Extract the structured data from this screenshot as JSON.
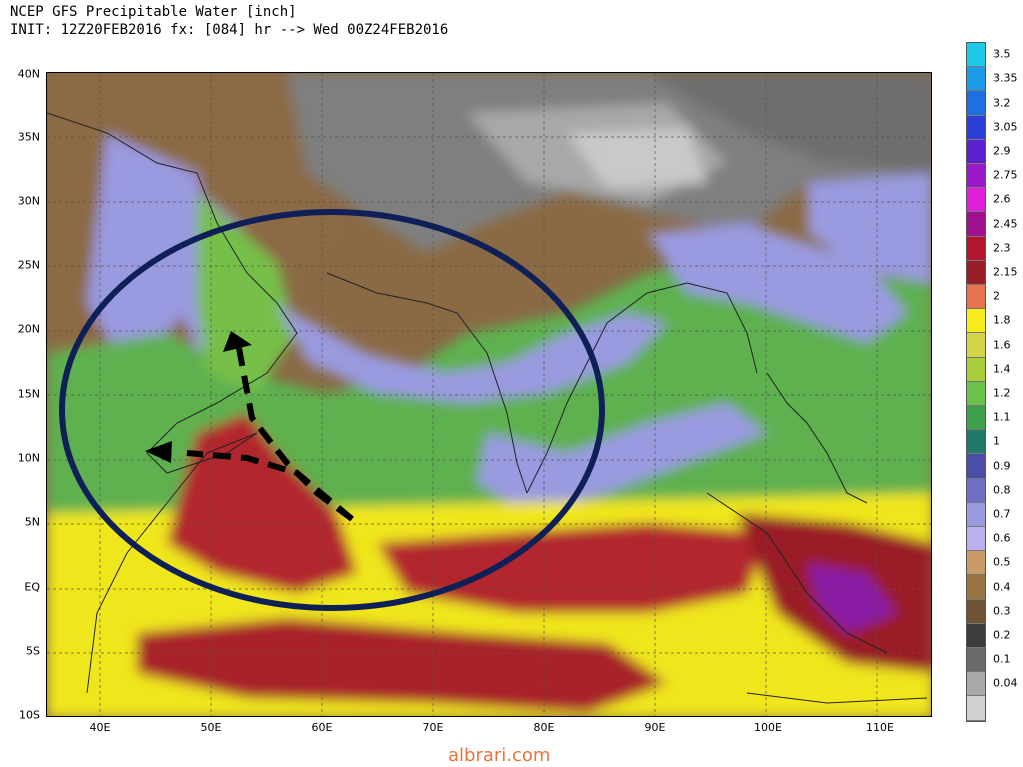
{
  "header": {
    "title_line1": "NCEP GFS Precipitable Water [inch]",
    "title_line2": "INIT: 12Z20FEB2016 fx: [084] hr --> Wed 00Z24FEB2016"
  },
  "axes": {
    "lat_labels": [
      "40N",
      "35N",
      "30N",
      "25N",
      "20N",
      "15N",
      "10N",
      "5N",
      "EQ",
      "5S",
      "10S"
    ],
    "lon_labels": [
      "40E",
      "50E",
      "60E",
      "70E",
      "80E",
      "90E",
      "100E",
      "110E"
    ]
  },
  "legend": {
    "levels": [
      "3.5",
      "3.35",
      "3.2",
      "3.05",
      "2.9",
      "2.75",
      "2.6",
      "2.45",
      "2.3",
      "2.15",
      "2",
      "1.8",
      "1.6",
      "1.4",
      "1.2",
      "1.1",
      "1",
      "0.9",
      "0.8",
      "0.7",
      "0.6",
      "0.5",
      "0.4",
      "0.3",
      "0.2",
      "0.1",
      "0.04"
    ],
    "colors": [
      "#1ec8e8",
      "#1e9be6",
      "#1f6fe0",
      "#2d3fd6",
      "#5a1fcf",
      "#9b19c9",
      "#e01fd9",
      "#a0108f",
      "#b2162e",
      "#9a1c26",
      "#e8734e",
      "#f5eb1d",
      "#d3d44a",
      "#a8cf3a",
      "#6cc24a",
      "#3ea04a",
      "#1f7a6b",
      "#4b4ea8",
      "#6f6fc4",
      "#9a9ae0",
      "#bdb0f0",
      "#c99a66",
      "#9a7544",
      "#6e5233",
      "#3d3d3d",
      "#6a6a6a",
      "#a8a8a8"
    ]
  },
  "map": {
    "land_labels": []
  },
  "footer": {
    "watermark": "albrari.com"
  }
}
